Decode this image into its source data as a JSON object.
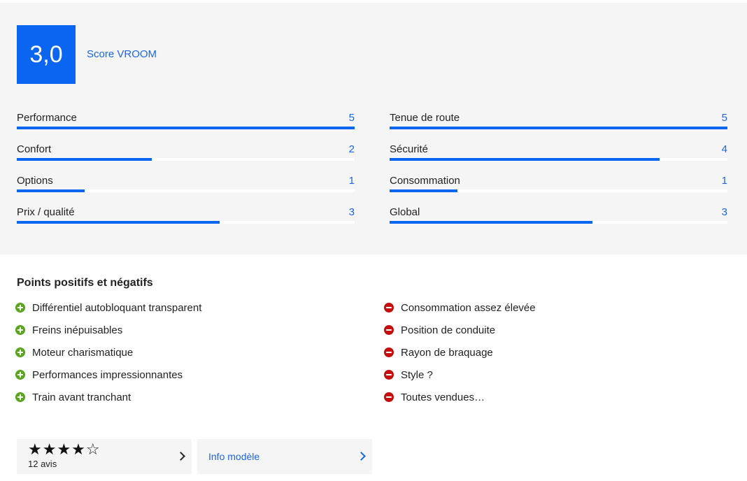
{
  "score": {
    "value": "3,0",
    "label": "Score VROOM"
  },
  "ratings": {
    "max": 5,
    "items": [
      {
        "name": "Performance",
        "value": "5",
        "score": 5
      },
      {
        "name": "Confort",
        "value": "2",
        "score": 2
      },
      {
        "name": "Options",
        "value": "1",
        "score": 1
      },
      {
        "name": "Prix / qualité",
        "value": "3",
        "score": 3
      },
      {
        "name": "Tenue de route",
        "value": "5",
        "score": 5
      },
      {
        "name": "Sécurité",
        "value": "4",
        "score": 4
      },
      {
        "name": "Consommation",
        "value": "1",
        "score": 1
      },
      {
        "name": "Global",
        "value": "3",
        "score": 3
      }
    ]
  },
  "points": {
    "title": "Points positifs et négatifs",
    "positive": [
      "Différentiel autobloquant transparent",
      "Freins inépuisables",
      "Moteur charismatique",
      "Performances impressionnantes",
      "Train avant tranchant"
    ],
    "negative": [
      "Consommation assez élevée",
      "Position de conduite",
      "Rayon de braquage",
      "Style ?",
      "Toutes vendues…"
    ]
  },
  "reviews": {
    "stars": "★★★★☆",
    "rating": 4.5,
    "count_label": "12 avis"
  },
  "info": {
    "label": "Info modèle"
  },
  "colors": {
    "accent": "#0a66f0",
    "positive": "#5aa61c",
    "negative": "#c50f0f",
    "panel": "#f5f5f5"
  },
  "icons": {
    "positive": "plus-circle-icon",
    "negative": "minus-circle-icon",
    "chevron": "chevron-right-icon"
  }
}
